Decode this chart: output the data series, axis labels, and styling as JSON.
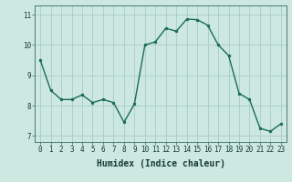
{
  "x": [
    0,
    1,
    2,
    3,
    4,
    5,
    6,
    7,
    8,
    9,
    10,
    11,
    12,
    13,
    14,
    15,
    16,
    17,
    18,
    19,
    20,
    21,
    22,
    23
  ],
  "y": [
    9.5,
    8.5,
    8.2,
    8.2,
    8.35,
    8.1,
    8.2,
    8.1,
    7.45,
    8.05,
    10.0,
    10.1,
    10.55,
    10.45,
    10.85,
    10.83,
    10.65,
    10.0,
    9.65,
    8.4,
    8.2,
    7.25,
    7.15,
    7.4
  ],
  "line_color": "#1a6b5e",
  "marker": "o",
  "markersize": 2.0,
  "linewidth": 1.0,
  "xlabel": "Humidex (Indice chaleur)",
  "xlabel_fontsize": 7,
  "xlim": [
    -0.5,
    23.5
  ],
  "ylim": [
    6.8,
    11.3
  ],
  "yticks": [
    7,
    8,
    9,
    10,
    11
  ],
  "xticks": [
    0,
    1,
    2,
    3,
    4,
    5,
    6,
    7,
    8,
    9,
    10,
    11,
    12,
    13,
    14,
    15,
    16,
    17,
    18,
    19,
    20,
    21,
    22,
    23
  ],
  "tick_fontsize": 5.5,
  "bg_color": "#cce8e0",
  "grid_color": "#aaccc4",
  "grid_linewidth": 0.6,
  "fig_bg_color": "#cce8e0",
  "spine_color": "#4a7a70"
}
